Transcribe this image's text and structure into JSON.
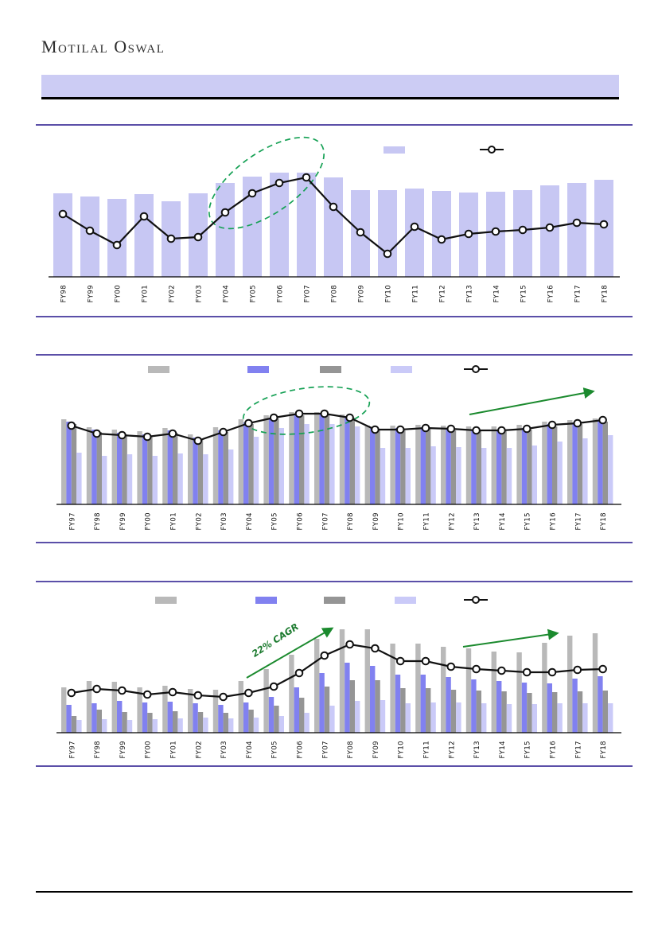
{
  "header": {
    "logo_text": "Motilal Oswal",
    "banner_text": ""
  },
  "colors": {
    "banner": "#ccccf4",
    "rule_purple": "#5b4fa8",
    "rule_black": "#000000",
    "ellipse_green": "#16a155",
    "arrow_green": "#1b8a2e",
    "line_black": "#111111"
  },
  "chart_data": [
    {
      "type": "bar",
      "subtype": "bar-with-line-overlay",
      "title": "",
      "xlabel": "",
      "ylabel": "",
      "units": "relative-height (no value axis shown in image)",
      "ylim": [
        0,
        140
      ],
      "categories": [
        "FY98",
        "FY99",
        "FY00",
        "FY01",
        "FY02",
        "FY03",
        "FY04",
        "FY05",
        "FY06",
        "FY07",
        "FY08",
        "FY09",
        "FY10",
        "FY11",
        "FY12",
        "FY13",
        "FY14",
        "FY15",
        "FY16",
        "FY17",
        "FY18"
      ],
      "series": [
        {
          "name": "bar-series",
          "color": "#c7c7f3",
          "values": [
            105,
            101,
            98,
            104,
            95,
            105,
            118,
            126,
            131,
            131,
            125,
            109,
            109,
            111,
            108,
            106,
            107,
            109,
            115,
            118,
            122
          ]
        }
      ],
      "line_series": {
        "name": "line-series",
        "color": "#111111",
        "marker": "circle",
        "values": [
          79,
          58,
          40,
          76,
          48,
          50,
          81,
          105,
          118,
          125,
          88,
          56,
          29,
          63,
          47,
          54,
          57,
          59,
          62,
          68,
          66
        ]
      },
      "legend": {
        "position": "top",
        "labels_visible": false,
        "entries": [
          "bar-swatch",
          "line-marker"
        ]
      },
      "annotations": [
        {
          "type": "ellipse",
          "style": "dashed",
          "color": "#16a155",
          "around": "FY04-FY07 upswing"
        }
      ],
      "axes": {
        "y_ticks_visible": false,
        "x_labels_rotation": 90
      }
    },
    {
      "type": "bar",
      "subtype": "grouped-bars-with-line-overlay",
      "title": "",
      "xlabel": "",
      "ylabel": "",
      "units": "relative-height (no value axis shown in image)",
      "ylim": [
        0,
        140
      ],
      "categories": [
        "FY97",
        "FY98",
        "FY99",
        "FY00",
        "FY01",
        "FY02",
        "FY03",
        "FY04",
        "FY05",
        "FY06",
        "FY07",
        "FY08",
        "FY09",
        "FY10",
        "FY11",
        "FY12",
        "FY13",
        "FY14",
        "FY15",
        "FY16",
        "FY17",
        "FY18"
      ],
      "series": [
        {
          "name": "series-1",
          "color": "#b9b9b9",
          "values": [
            107,
            97,
            94,
            92,
            96,
            88,
            97,
            107,
            112,
            116,
            116,
            113,
            99,
            99,
            100,
            99,
            98,
            98,
            100,
            104,
            106,
            108
          ]
        },
        {
          "name": "series-2",
          "color": "#8181f0",
          "values": [
            104,
            94,
            90,
            88,
            93,
            84,
            93,
            103,
            109,
            114,
            114,
            110,
            96,
            96,
            97,
            96,
            94,
            94,
            96,
            101,
            103,
            106
          ]
        },
        {
          "name": "series-3",
          "color": "#959595",
          "values": [
            101,
            91,
            88,
            86,
            90,
            82,
            91,
            101,
            108,
            112,
            112,
            109,
            93,
            93,
            95,
            93,
            92,
            92,
            94,
            98,
            101,
            104
          ]
        },
        {
          "name": "series-4",
          "color": "#cacaf8",
          "values": [
            65,
            61,
            63,
            61,
            64,
            63,
            69,
            85,
            96,
            101,
            101,
            98,
            71,
            71,
            73,
            72,
            71,
            71,
            74,
            79,
            83,
            87
          ]
        }
      ],
      "line_series": {
        "name": "line-series",
        "color": "#111111",
        "marker": "circle",
        "values": [
          99,
          89,
          87,
          85,
          89,
          80,
          91,
          102,
          109,
          114,
          114,
          109,
          94,
          94,
          96,
          95,
          93,
          93,
          95,
          100,
          102,
          106
        ]
      },
      "legend": {
        "position": "top",
        "labels_visible": false,
        "entries": [
          "swatch-1",
          "swatch-2",
          "swatch-3",
          "swatch-4",
          "line-marker"
        ]
      },
      "annotations": [
        {
          "type": "ellipse",
          "style": "dashed",
          "color": "#16a155",
          "around": "FY04-FY08 plateau"
        },
        {
          "type": "arrow",
          "color": "#1b8a2e",
          "direction": "up-right",
          "near": "FY15-FY18"
        }
      ],
      "axes": {
        "y_ticks_visible": false,
        "x_labels_rotation": 90
      }
    },
    {
      "type": "bar",
      "subtype": "grouped-bars-with-line-overlay",
      "title": "",
      "xlabel": "",
      "ylabel": "",
      "units": "relative-height (no value axis shown in image)",
      "ylim": [
        0,
        140
      ],
      "categories": [
        "FY97",
        "FY98",
        "FY99",
        "FY00",
        "FY01",
        "FY02",
        "FY03",
        "FY04",
        "FY05",
        "FY06",
        "FY07",
        "FY08",
        "FY09",
        "FY10",
        "FY11",
        "FY12",
        "FY13",
        "FY14",
        "FY15",
        "FY16",
        "FY17",
        "FY18"
      ],
      "series": [
        {
          "name": "series-1",
          "color": "#b9b9b9",
          "values": [
            57,
            65,
            64,
            57,
            59,
            55,
            54,
            65,
            80,
            98,
            118,
            130,
            130,
            112,
            112,
            108,
            106,
            102,
            101,
            113,
            122,
            125
          ]
        },
        {
          "name": "series-2",
          "color": "#8181f0",
          "values": [
            35,
            37,
            40,
            38,
            39,
            37,
            35,
            38,
            45,
            57,
            75,
            88,
            84,
            73,
            73,
            70,
            67,
            65,
            63,
            62,
            68,
            71
          ]
        },
        {
          "name": "series-3",
          "color": "#959595",
          "values": [
            21,
            29,
            26,
            25,
            27,
            26,
            25,
            29,
            34,
            44,
            58,
            66,
            66,
            56,
            56,
            54,
            53,
            52,
            50,
            51,
            52,
            53
          ]
        },
        {
          "name": "series-4",
          "color": "#cacaf8",
          "values": [
            16,
            17,
            16,
            17,
            18,
            19,
            18,
            19,
            21,
            25,
            34,
            40,
            41,
            37,
            38,
            38,
            37,
            36,
            36,
            37,
            37,
            37
          ]
        }
      ],
      "line_series": {
        "name": "line-series",
        "color": "#111111",
        "marker": "circle",
        "values": [
          50,
          55,
          53,
          48,
          51,
          47,
          45,
          50,
          58,
          75,
          97,
          111,
          106,
          90,
          90,
          83,
          80,
          78,
          76,
          76,
          79,
          80
        ]
      },
      "legend": {
        "position": "top",
        "labels_visible": false,
        "entries": [
          "swatch-1",
          "swatch-2",
          "swatch-3",
          "swatch-4",
          "line-marker"
        ]
      },
      "annotations": [
        {
          "type": "text",
          "text": "22% CAGR",
          "color": "#1b7a2e",
          "style": "bold-italic-rotated"
        },
        {
          "type": "arrow",
          "color": "#1b8a2e",
          "direction": "up-right",
          "near": "FY04-FY07"
        },
        {
          "type": "arrow",
          "color": "#1b8a2e",
          "direction": "up-right",
          "near": "FY14-FY18"
        }
      ],
      "axes": {
        "y_ticks_visible": false,
        "x_labels_rotation": 90
      }
    }
  ]
}
